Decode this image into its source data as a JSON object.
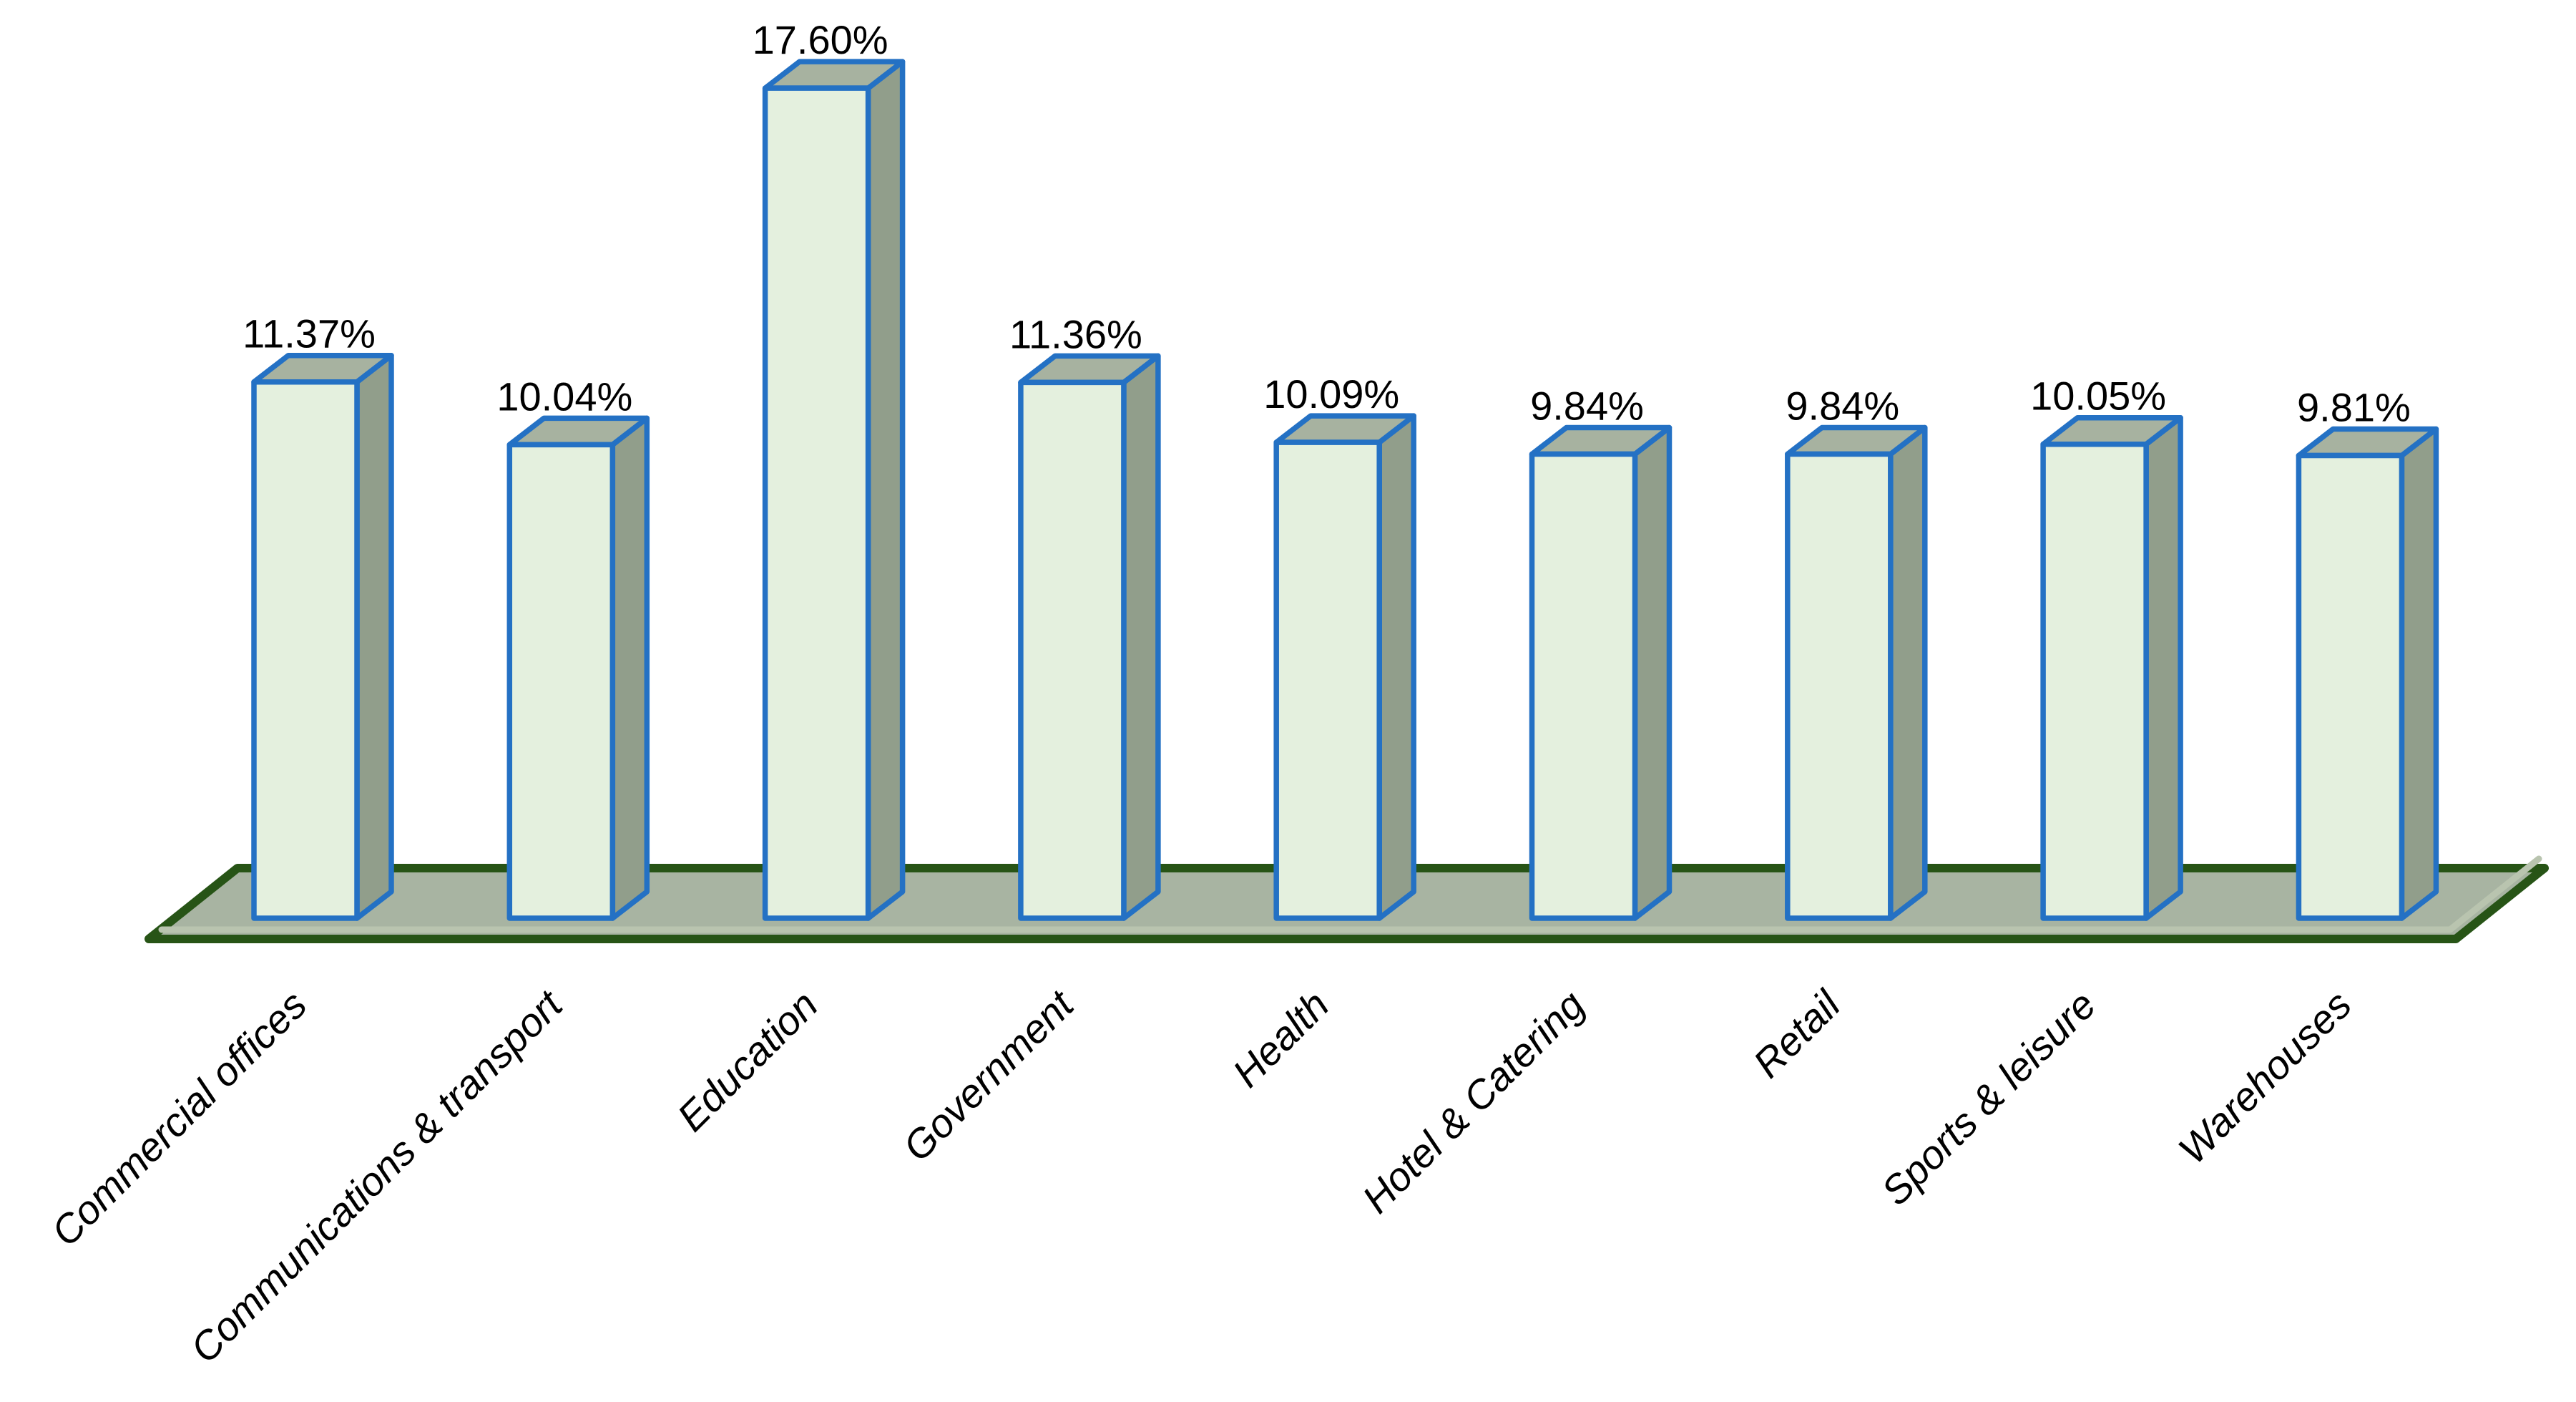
{
  "page": {
    "background": "#ffffff"
  },
  "chart_data": {
    "type": "bar",
    "style": "3d-column",
    "title": "",
    "xlabel": "",
    "ylabel": "",
    "categories": [
      "Commercial offices",
      "Communications & transport",
      "Education",
      "Government",
      "Health",
      "Hotel & Catering",
      "Retail",
      "Sports & leisure",
      "Warehouses"
    ],
    "values": [
      11.37,
      10.04,
      17.6,
      11.36,
      10.09,
      9.84,
      9.84,
      10.05,
      9.81
    ],
    "value_labels": [
      "11.37%",
      "10.04%",
      "17.60%",
      "11.36%",
      "10.09%",
      "9.84%",
      "9.84%",
      "10.05%",
      "9.81%"
    ],
    "ylim": [
      0,
      18
    ],
    "grid": false,
    "legend": null,
    "category_label_style": "italic, rotated 45deg",
    "colors": {
      "bar_front": "#e4f0de",
      "bar_side": "#919e8b",
      "bar_top": "#a7b2a0",
      "bar_border": "#2471c4",
      "floor_fill": "#a8b4a2",
      "floor_border": "#275416",
      "floor_highlight": "#b9c4af",
      "label_color": "#000000"
    }
  }
}
